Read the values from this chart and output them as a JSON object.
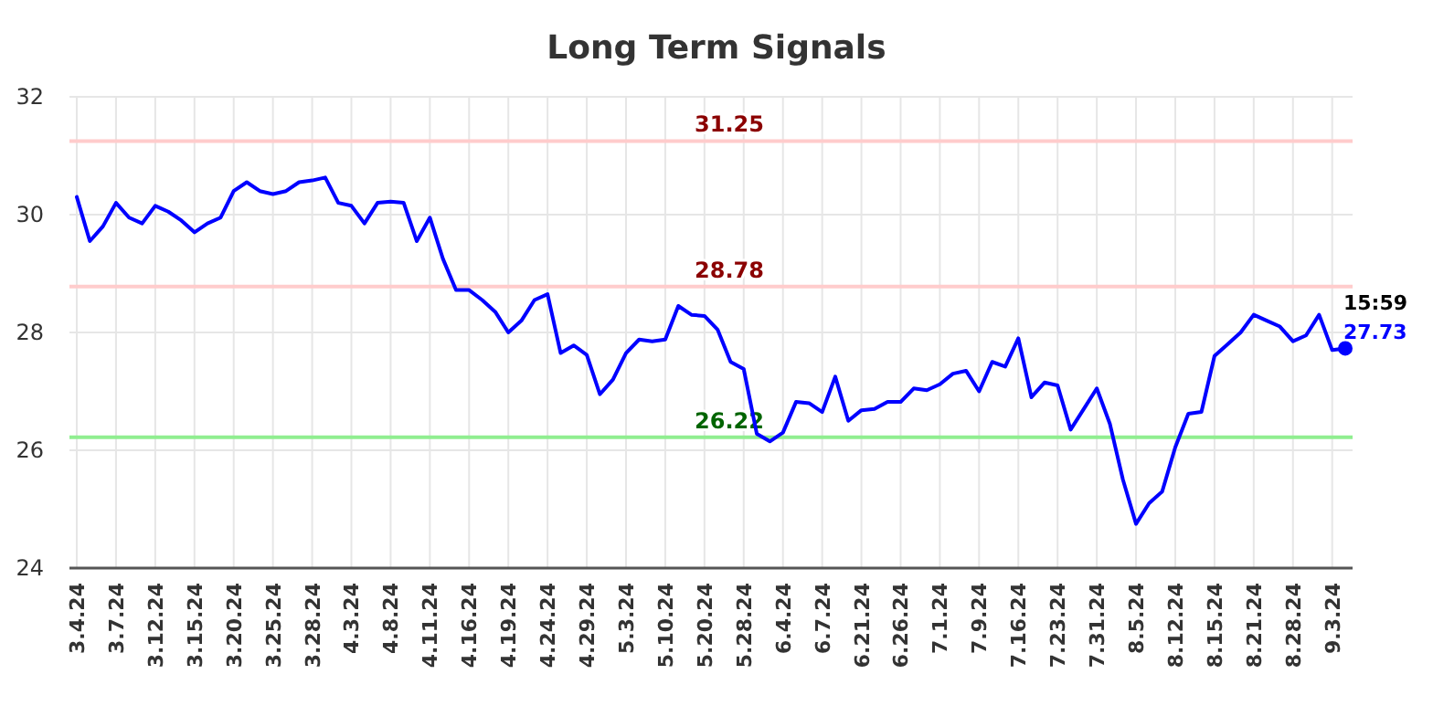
{
  "chart_data": {
    "type": "line",
    "title": "Long Term Signals",
    "categories": [
      "3.4.24",
      null,
      null,
      "3.7.24",
      null,
      null,
      "3.12.24",
      null,
      null,
      "3.15.24",
      null,
      null,
      "3.20.24",
      null,
      null,
      "3.25.24",
      null,
      null,
      "3.28.24",
      null,
      null,
      "4.3.24",
      null,
      null,
      "4.8.24",
      null,
      null,
      "4.11.24",
      null,
      null,
      "4.16.24",
      null,
      null,
      "4.19.24",
      null,
      null,
      "4.24.24",
      null,
      null,
      "4.29.24",
      null,
      null,
      "5.3.24",
      null,
      null,
      "5.10.24",
      null,
      null,
      "5.20.24",
      null,
      null,
      "5.28.24",
      null,
      null,
      "6.4.24",
      null,
      null,
      "6.7.24",
      null,
      null,
      "6.21.24",
      null,
      null,
      "6.26.24",
      null,
      null,
      "7.1.24",
      null,
      null,
      "7.9.24",
      null,
      null,
      "7.16.24",
      null,
      null,
      "7.23.24",
      null,
      null,
      "7.31.24",
      null,
      null,
      "8.5.24",
      null,
      null,
      "8.12.24",
      null,
      null,
      "8.15.24",
      null,
      null,
      "8.21.24",
      null,
      null,
      "8.28.24",
      null,
      null,
      "9.3.24",
      null
    ],
    "series": [
      {
        "color": "#0000ff",
        "values": [
          30.3,
          29.55,
          29.8,
          30.2,
          29.95,
          29.85,
          30.15,
          30.05,
          29.9,
          29.7,
          29.85,
          29.95,
          30.4,
          30.55,
          30.4,
          30.35,
          30.4,
          30.55,
          30.58,
          30.63,
          30.2,
          30.15,
          29.85,
          30.2,
          30.22,
          30.2,
          29.55,
          29.95,
          29.25,
          28.72,
          28.72,
          28.55,
          28.35,
          28.0,
          28.2,
          28.55,
          28.65,
          27.65,
          27.78,
          27.62,
          26.95,
          27.2,
          27.65,
          27.88,
          27.85,
          27.88,
          28.45,
          28.3,
          28.28,
          28.05,
          27.5,
          27.38,
          26.28,
          26.15,
          26.3,
          26.82,
          26.8,
          26.65,
          27.25,
          26.5,
          26.68,
          26.7,
          26.82,
          26.82,
          27.05,
          27.02,
          27.12,
          27.3,
          27.35,
          27.0,
          27.5,
          27.42,
          27.9,
          26.9,
          27.15,
          27.1,
          26.35,
          26.7,
          27.05,
          26.45,
          25.5,
          24.75,
          25.1,
          25.3,
          26.05,
          26.62,
          26.65,
          27.6,
          27.8,
          28.0,
          28.3,
          28.2,
          28.1,
          27.85,
          27.95,
          28.3,
          27.7,
          27.73
        ],
        "value_labels": [
          null,
          null,
          null,
          null,
          null,
          null,
          null,
          null,
          null,
          null,
          null,
          null,
          null,
          null,
          null,
          null,
          null,
          null,
          null,
          null,
          null,
          null,
          null,
          null,
          null,
          null,
          null,
          null,
          null,
          null,
          null,
          null,
          null,
          null,
          null,
          null,
          null,
          null,
          null,
          null,
          null,
          null,
          null,
          null,
          null,
          null,
          null,
          null,
          null,
          null,
          null,
          null,
          null,
          null,
          null,
          null,
          null,
          null,
          null,
          null,
          null,
          null,
          null,
          null,
          null,
          null,
          null,
          null,
          null,
          null,
          null,
          null,
          null,
          null,
          null,
          null,
          null,
          null,
          null,
          null,
          null,
          null,
          null,
          null,
          null,
          null,
          null,
          null,
          null,
          null,
          null,
          null,
          null,
          null,
          null,
          null,
          null,
          "27.73"
        ]
      }
    ],
    "ylim": [
      24,
      32
    ],
    "yticks": [
      24,
      26,
      28,
      30,
      32
    ],
    "grid": true,
    "ref_lines": [
      {
        "axis": "y",
        "value": 31.25,
        "label": "31.25",
        "color": "#ffcccc"
      },
      {
        "axis": "y",
        "value": 28.78,
        "label": "28.78",
        "color": "#ffcccc"
      },
      {
        "axis": "y",
        "value": 26.22,
        "label": "26.22",
        "color": "#90ee90"
      }
    ],
    "annotations": [
      "15:59"
    ]
  }
}
